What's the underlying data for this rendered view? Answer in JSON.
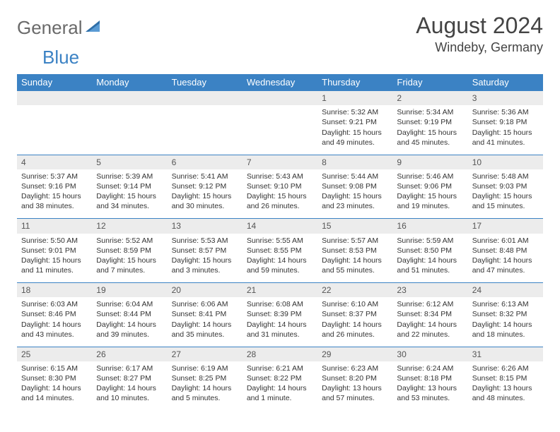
{
  "logo": {
    "part1": "General",
    "part2": "Blue"
  },
  "title": "August 2024",
  "location": "Windeby, Germany",
  "colors": {
    "header_bg": "#3b82c4",
    "header_text": "#ffffff",
    "daynum_bg": "#ececec",
    "text": "#333333",
    "border": "#3b82c4"
  },
  "weekdays": [
    "Sunday",
    "Monday",
    "Tuesday",
    "Wednesday",
    "Thursday",
    "Friday",
    "Saturday"
  ],
  "weeks": [
    [
      null,
      null,
      null,
      null,
      {
        "n": "1",
        "sr": "5:32 AM",
        "ss": "9:21 PM",
        "dl": "15 hours and 49 minutes."
      },
      {
        "n": "2",
        "sr": "5:34 AM",
        "ss": "9:19 PM",
        "dl": "15 hours and 45 minutes."
      },
      {
        "n": "3",
        "sr": "5:36 AM",
        "ss": "9:18 PM",
        "dl": "15 hours and 41 minutes."
      }
    ],
    [
      {
        "n": "4",
        "sr": "5:37 AM",
        "ss": "9:16 PM",
        "dl": "15 hours and 38 minutes."
      },
      {
        "n": "5",
        "sr": "5:39 AM",
        "ss": "9:14 PM",
        "dl": "15 hours and 34 minutes."
      },
      {
        "n": "6",
        "sr": "5:41 AM",
        "ss": "9:12 PM",
        "dl": "15 hours and 30 minutes."
      },
      {
        "n": "7",
        "sr": "5:43 AM",
        "ss": "9:10 PM",
        "dl": "15 hours and 26 minutes."
      },
      {
        "n": "8",
        "sr": "5:44 AM",
        "ss": "9:08 PM",
        "dl": "15 hours and 23 minutes."
      },
      {
        "n": "9",
        "sr": "5:46 AM",
        "ss": "9:06 PM",
        "dl": "15 hours and 19 minutes."
      },
      {
        "n": "10",
        "sr": "5:48 AM",
        "ss": "9:03 PM",
        "dl": "15 hours and 15 minutes."
      }
    ],
    [
      {
        "n": "11",
        "sr": "5:50 AM",
        "ss": "9:01 PM",
        "dl": "15 hours and 11 minutes."
      },
      {
        "n": "12",
        "sr": "5:52 AM",
        "ss": "8:59 PM",
        "dl": "15 hours and 7 minutes."
      },
      {
        "n": "13",
        "sr": "5:53 AM",
        "ss": "8:57 PM",
        "dl": "15 hours and 3 minutes."
      },
      {
        "n": "14",
        "sr": "5:55 AM",
        "ss": "8:55 PM",
        "dl": "14 hours and 59 minutes."
      },
      {
        "n": "15",
        "sr": "5:57 AM",
        "ss": "8:53 PM",
        "dl": "14 hours and 55 minutes."
      },
      {
        "n": "16",
        "sr": "5:59 AM",
        "ss": "8:50 PM",
        "dl": "14 hours and 51 minutes."
      },
      {
        "n": "17",
        "sr": "6:01 AM",
        "ss": "8:48 PM",
        "dl": "14 hours and 47 minutes."
      }
    ],
    [
      {
        "n": "18",
        "sr": "6:03 AM",
        "ss": "8:46 PM",
        "dl": "14 hours and 43 minutes."
      },
      {
        "n": "19",
        "sr": "6:04 AM",
        "ss": "8:44 PM",
        "dl": "14 hours and 39 minutes."
      },
      {
        "n": "20",
        "sr": "6:06 AM",
        "ss": "8:41 PM",
        "dl": "14 hours and 35 minutes."
      },
      {
        "n": "21",
        "sr": "6:08 AM",
        "ss": "8:39 PM",
        "dl": "14 hours and 31 minutes."
      },
      {
        "n": "22",
        "sr": "6:10 AM",
        "ss": "8:37 PM",
        "dl": "14 hours and 26 minutes."
      },
      {
        "n": "23",
        "sr": "6:12 AM",
        "ss": "8:34 PM",
        "dl": "14 hours and 22 minutes."
      },
      {
        "n": "24",
        "sr": "6:13 AM",
        "ss": "8:32 PM",
        "dl": "14 hours and 18 minutes."
      }
    ],
    [
      {
        "n": "25",
        "sr": "6:15 AM",
        "ss": "8:30 PM",
        "dl": "14 hours and 14 minutes."
      },
      {
        "n": "26",
        "sr": "6:17 AM",
        "ss": "8:27 PM",
        "dl": "14 hours and 10 minutes."
      },
      {
        "n": "27",
        "sr": "6:19 AM",
        "ss": "8:25 PM",
        "dl": "14 hours and 5 minutes."
      },
      {
        "n": "28",
        "sr": "6:21 AM",
        "ss": "8:22 PM",
        "dl": "14 hours and 1 minute."
      },
      {
        "n": "29",
        "sr": "6:23 AM",
        "ss": "8:20 PM",
        "dl": "13 hours and 57 minutes."
      },
      {
        "n": "30",
        "sr": "6:24 AM",
        "ss": "8:18 PM",
        "dl": "13 hours and 53 minutes."
      },
      {
        "n": "31",
        "sr": "6:26 AM",
        "ss": "8:15 PM",
        "dl": "13 hours and 48 minutes."
      }
    ]
  ]
}
